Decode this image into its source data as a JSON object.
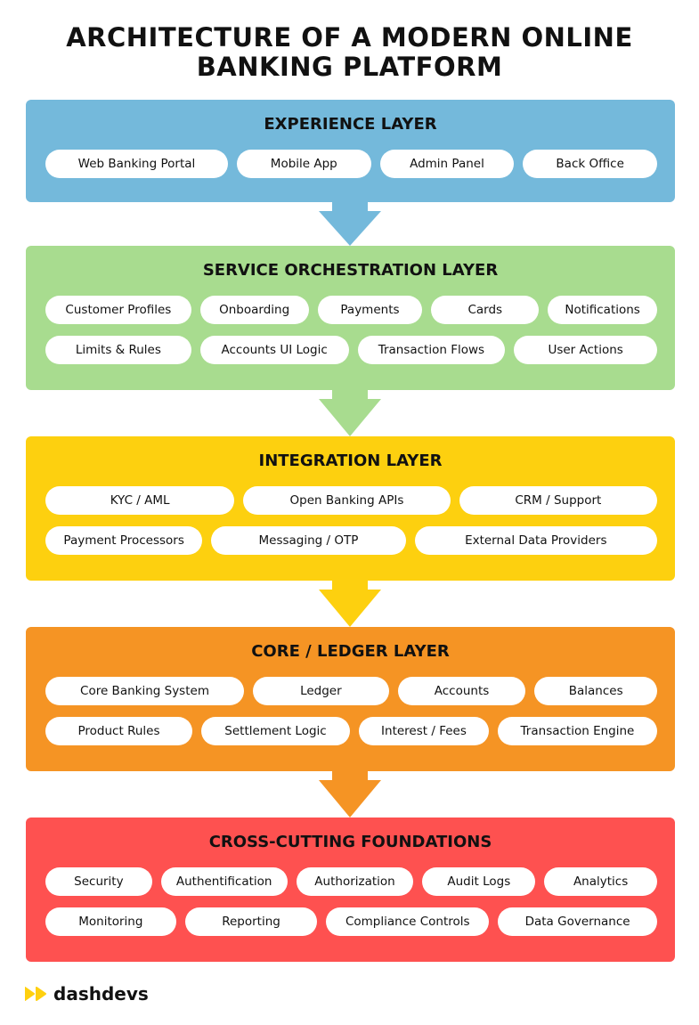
{
  "title_line1": "ARCHITECTURE OF A MODERN ONLINE",
  "title_line2": "BANKING PLATFORM",
  "layers": [
    {
      "title": "EXPERIENCE LAYER",
      "color": "#74b9db",
      "rows": [
        [
          "Web Banking Portal",
          "Mobile App",
          "Admin Panel",
          "Back Office"
        ]
      ]
    },
    {
      "title": "SERVICE ORCHESTRATION LAYER",
      "color": "#a8dc8f",
      "rows": [
        [
          "Customer Profiles",
          "Onboarding",
          "Payments",
          "Cards",
          "Notifications"
        ],
        [
          "Limits & Rules",
          "Accounts UI Logic",
          "Transaction Flows",
          "User Actions"
        ]
      ]
    },
    {
      "title": "INTEGRATION LAYER",
      "color": "#fdd00f",
      "rows": [
        [
          "KYC / AML",
          "Open Banking APIs",
          "CRM / Support"
        ],
        [
          "Payment Processors",
          "Messaging / OTP",
          "External Data Providers"
        ]
      ]
    },
    {
      "title": "CORE / LEDGER LAYER",
      "color": "#f59424",
      "rows": [
        [
          "Core Banking System",
          "Ledger",
          "Accounts",
          "Balances"
        ],
        [
          "Product Rules",
          "Settlement Logic",
          "Interest / Fees",
          "Transaction Engine"
        ]
      ]
    },
    {
      "title": "CROSS-CUTTING FOUNDATIONS",
      "color": "#fe5150",
      "rows": [
        [
          "Security",
          "Authentification",
          "Authorization",
          "Audit Logs",
          "Analytics"
        ],
        [
          "Monitoring",
          "Reporting",
          "Compliance Controls",
          "Data Governance"
        ]
      ]
    }
  ],
  "logo": {
    "text": "dashdevs",
    "color": "#ffd00f"
  }
}
